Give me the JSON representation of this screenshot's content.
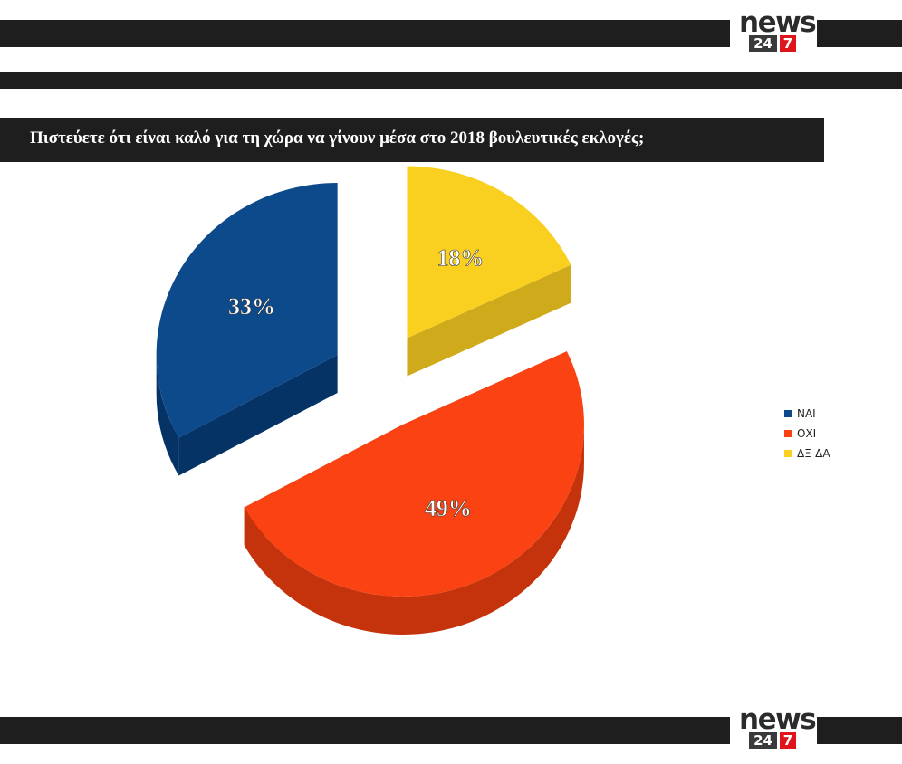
{
  "brand": {
    "word": "news",
    "num": "24",
    "seven": "7"
  },
  "title": "Πιστεύετε ότι είναι καλό για τη χώρα να γίνουν μέσα στο 2018 βουλευτικές εκλογές;",
  "chart_data": {
    "type": "pie",
    "title": "Πιστεύετε ότι είναι καλό για τη χώρα να γίνουν μέσα στο 2018 βουλευτικές εκλογές;",
    "categories": [
      "ΝΑΙ",
      "ΟΧΙ",
      "ΔΞ-ΔΑ"
    ],
    "values": [
      33,
      49,
      18
    ],
    "labels": [
      "33%",
      "49%",
      "18%"
    ],
    "colors": [
      "#0d4a8c",
      "#fa4213",
      "#f9d020"
    ],
    "side_colors": [
      "#063365",
      "#c5330c",
      "#cfaa1b"
    ],
    "legend_position": "right",
    "style": "3d-exploded"
  }
}
